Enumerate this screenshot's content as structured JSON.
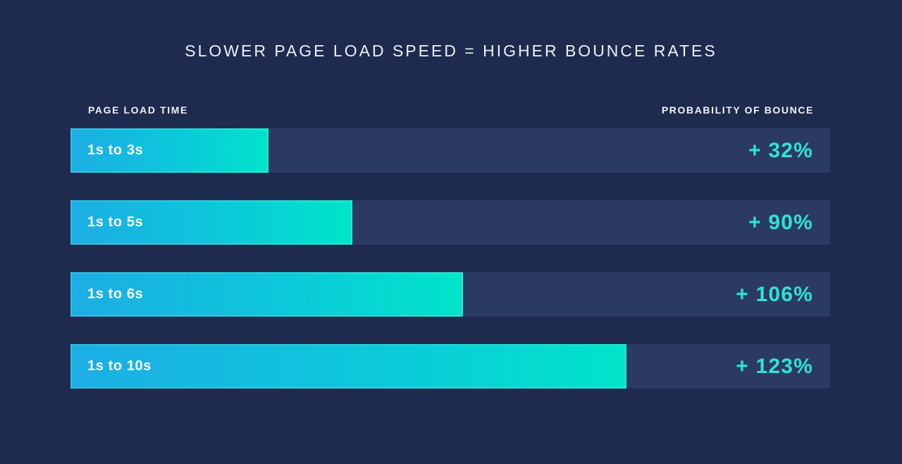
{
  "title": "SLOWER PAGE LOAD SPEED = HIGHER BOUNCE RATES",
  "column_headers": {
    "left": "PAGE LOAD TIME",
    "right": "PROBABILITY OF BOUNCE"
  },
  "colors": {
    "background": "#1E2A4E",
    "track": "#2B3A61",
    "bar_gradient_start": "#1CADE4",
    "bar_gradient_end": "#00E4CA",
    "value_text": "#2EE4D2",
    "title_text": "#EEF1F7",
    "bar_label_text": "#FFFFFF"
  },
  "chart_data": {
    "type": "bar",
    "orientation": "horizontal",
    "title": "SLOWER PAGE LOAD SPEED = HIGHER BOUNCE RATES",
    "xlabel": "PROBABILITY OF BOUNCE",
    "ylabel": "PAGE LOAD TIME",
    "categories": [
      "1s to 3s",
      "1s to 5s",
      "1s to 6s",
      "1s to 10s"
    ],
    "values": [
      32,
      90,
      106,
      123
    ],
    "value_labels": [
      "+ 32%",
      "+ 90%",
      "+ 106%",
      "+ 123%"
    ],
    "bar_width_pct": [
      26.1,
      37.1,
      51.7,
      73.2
    ],
    "grid": false,
    "legend": false
  }
}
